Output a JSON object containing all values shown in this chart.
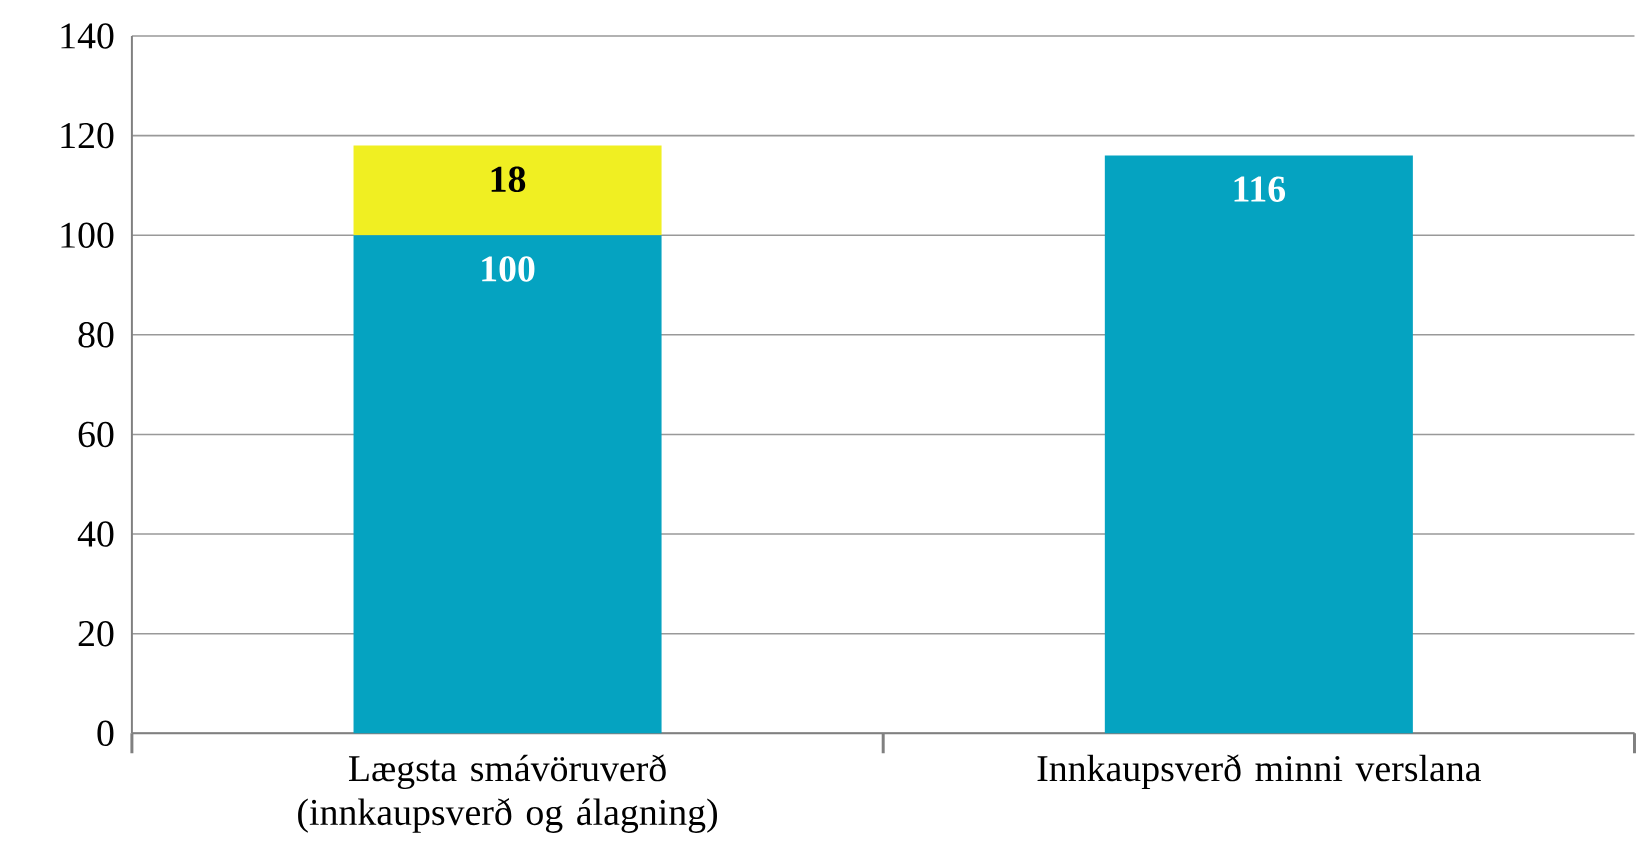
{
  "chart_data": {
    "type": "bar",
    "stacked": true,
    "categories": [
      "Lægsta smávöruverð (innkaupsverð og álagning)",
      "Innkaupsverð minni verslana"
    ],
    "series": [
      {
        "color": "#05a3c1",
        "values": [
          100,
          116
        ]
      },
      {
        "color": "#f0ef22",
        "values": [
          18,
          null
        ]
      }
    ],
    "ylim": [
      0,
      140
    ],
    "yticks": [
      0,
      20,
      40,
      60,
      80,
      100,
      120,
      140
    ],
    "grid": "y",
    "data_labels": true
  }
}
